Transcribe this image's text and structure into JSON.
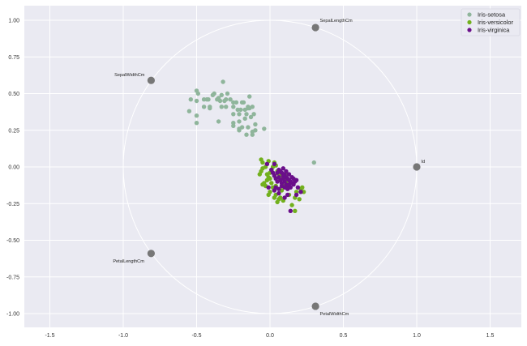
{
  "chart_data": {
    "type": "scatter",
    "title": "",
    "xlabel": "",
    "ylabel": "",
    "xlim": [
      -1.65,
      1.72
    ],
    "ylim": [
      -1.1,
      1.1
    ],
    "grid": true,
    "legend_position": "upper right",
    "x_ticks": [
      "-1.5",
      "-1.0",
      "-0.5",
      "0.0",
      "0.5",
      "1.0",
      "1.5"
    ],
    "x_tick_values": [
      -1.5,
      -1.0,
      -0.5,
      0.0,
      0.5,
      1.0,
      1.5
    ],
    "y_ticks": [
      "1.00",
      "0.75",
      "0.50",
      "0.25",
      "0.00",
      "-0.25",
      "-0.50",
      "-0.75",
      "-1.00"
    ],
    "y_tick_values": [
      1.0,
      0.75,
      0.5,
      0.25,
      0.0,
      -0.25,
      -0.5,
      -0.75,
      -1.0
    ],
    "unit_circle": {
      "center": [
        0,
        0
      ],
      "radius": 1.0,
      "color": "#ffffff"
    },
    "series": [
      {
        "name": "Iris-setosa",
        "color": "#8fb59b",
        "points": [
          [
            -0.32,
            0.58
          ],
          [
            -0.5,
            0.52
          ],
          [
            -0.49,
            0.5
          ],
          [
            -0.54,
            0.46
          ],
          [
            -0.5,
            0.45
          ],
          [
            -0.45,
            0.46
          ],
          [
            -0.43,
            0.46
          ],
          [
            -0.42,
            0.46
          ],
          [
            -0.39,
            0.49
          ],
          [
            -0.38,
            0.5
          ],
          [
            -0.36,
            0.46
          ],
          [
            -0.35,
            0.47
          ],
          [
            -0.34,
            0.45
          ],
          [
            -0.33,
            0.49
          ],
          [
            -0.3,
            0.46
          ],
          [
            -0.31,
            0.45
          ],
          [
            -0.29,
            0.5
          ],
          [
            -0.27,
            0.46
          ],
          [
            -0.25,
            0.44
          ],
          [
            -0.23,
            0.44
          ],
          [
            -0.19,
            0.44
          ],
          [
            -0.14,
            0.48
          ],
          [
            -0.18,
            0.44
          ],
          [
            -0.22,
            0.39
          ],
          [
            -0.2,
            0.39
          ],
          [
            -0.17,
            0.39
          ],
          [
            -0.15,
            0.4
          ],
          [
            -0.15,
            0.41
          ],
          [
            -0.14,
            0.4
          ],
          [
            -0.12,
            0.41
          ],
          [
            -0.21,
            0.36
          ],
          [
            -0.16,
            0.36
          ],
          [
            -0.11,
            0.36
          ],
          [
            -0.13,
            0.34
          ],
          [
            -0.17,
            0.33
          ],
          [
            -0.25,
            0.36
          ],
          [
            -0.25,
            0.41
          ],
          [
            -0.3,
            0.41
          ],
          [
            -0.33,
            0.41
          ],
          [
            -0.41,
            0.4
          ],
          [
            -0.41,
            0.41
          ],
          [
            -0.45,
            0.41
          ],
          [
            -0.55,
            0.38
          ],
          [
            -0.5,
            0.35
          ],
          [
            -0.5,
            0.3
          ],
          [
            -0.35,
            0.31
          ],
          [
            -0.25,
            0.3
          ],
          [
            -0.25,
            0.28
          ],
          [
            -0.21,
            0.31
          ],
          [
            -0.19,
            0.27
          ],
          [
            -0.21,
            0.26
          ],
          [
            -0.21,
            0.25
          ],
          [
            -0.15,
            0.27
          ],
          [
            -0.1,
            0.29
          ],
          [
            -0.04,
            0.26
          ],
          [
            -0.1,
            0.25
          ],
          [
            -0.16,
            0.22
          ],
          [
            -0.12,
            0.22
          ],
          [
            -0.12,
            0.24
          ],
          [
            0.3,
            0.03
          ]
        ]
      },
      {
        "name": "Iris-versicolor",
        "color": "#72b01d",
        "points": [
          [
            -0.06,
            0.05
          ],
          [
            -0.05,
            0.03
          ],
          [
            -0.06,
            -0.03
          ],
          [
            -0.07,
            -0.05
          ],
          [
            -0.05,
            -0.01
          ],
          [
            -0.03,
            0.0
          ],
          [
            -0.02,
            0.02
          ],
          [
            -0.01,
            0.04
          ],
          [
            0.01,
            -0.02
          ],
          [
            0.02,
            0.0
          ],
          [
            0.03,
            0.03
          ],
          [
            0.04,
            0.01
          ],
          [
            -0.04,
            -0.11
          ],
          [
            -0.05,
            -0.12
          ],
          [
            -0.03,
            -0.13
          ],
          [
            -0.02,
            -0.09
          ],
          [
            -0.01,
            -0.07
          ],
          [
            0.0,
            -0.04
          ],
          [
            -0.02,
            -0.05
          ],
          [
            0.0,
            -0.08
          ],
          [
            0.01,
            -0.11
          ],
          [
            0.03,
            -0.06
          ],
          [
            0.05,
            -0.03
          ],
          [
            0.06,
            -0.05
          ],
          [
            0.07,
            -0.07
          ],
          [
            0.08,
            -0.06
          ],
          [
            0.1,
            -0.08
          ],
          [
            0.11,
            -0.1
          ],
          [
            0.12,
            -0.05
          ],
          [
            0.04,
            -0.13
          ],
          [
            0.02,
            -0.14
          ],
          [
            0.08,
            -0.16
          ],
          [
            0.09,
            -0.13
          ],
          [
            0.13,
            -0.19
          ],
          [
            0.17,
            -0.21
          ],
          [
            0.22,
            -0.14
          ],
          [
            0.23,
            -0.17
          ],
          [
            0.0,
            -0.17
          ],
          [
            -0.01,
            -0.19
          ],
          [
            0.04,
            -0.19
          ],
          [
            0.07,
            -0.21
          ],
          [
            0.06,
            -0.22
          ],
          [
            0.17,
            -0.3
          ],
          [
            0.15,
            -0.26
          ],
          [
            0.2,
            -0.22
          ],
          [
            0.05,
            -0.24
          ],
          [
            0.09,
            -0.23
          ],
          [
            0.03,
            -0.21
          ],
          [
            0.21,
            -0.15
          ],
          [
            0.18,
            -0.17
          ]
        ]
      },
      {
        "name": "Iris-virginica",
        "color": "#6a0f8a",
        "points": [
          [
            -0.02,
            0.02
          ],
          [
            0.03,
            0.02
          ],
          [
            0.05,
            -0.04
          ],
          [
            0.06,
            -0.02
          ],
          [
            0.07,
            -0.03
          ],
          [
            0.08,
            -0.04
          ],
          [
            0.09,
            -0.06
          ],
          [
            0.1,
            -0.05
          ],
          [
            0.11,
            -0.07
          ],
          [
            0.12,
            -0.08
          ],
          [
            0.13,
            -0.09
          ],
          [
            0.14,
            -0.1
          ],
          [
            0.15,
            -0.11
          ],
          [
            0.16,
            -0.12
          ],
          [
            0.17,
            -0.1
          ],
          [
            0.18,
            -0.09
          ],
          [
            0.1,
            -0.1
          ],
          [
            0.11,
            -0.12
          ],
          [
            0.12,
            -0.13
          ],
          [
            0.13,
            -0.12
          ],
          [
            0.14,
            -0.14
          ],
          [
            0.09,
            -0.08
          ],
          [
            0.08,
            -0.11
          ],
          [
            0.07,
            -0.09
          ],
          [
            0.06,
            -0.07
          ],
          [
            0.05,
            -0.1
          ],
          [
            0.04,
            -0.08
          ],
          [
            0.03,
            -0.06
          ],
          [
            0.02,
            -0.04
          ],
          [
            0.01,
            -0.02
          ],
          [
            0.11,
            -0.03
          ],
          [
            0.09,
            -0.01
          ],
          [
            0.13,
            -0.05
          ],
          [
            0.15,
            -0.07
          ],
          [
            0.16,
            -0.08
          ],
          [
            0.1,
            -0.14
          ],
          [
            0.12,
            -0.15
          ],
          [
            0.08,
            -0.13
          ],
          [
            0.06,
            -0.15
          ],
          [
            0.04,
            -0.14
          ],
          [
            0.03,
            -0.16
          ],
          [
            0.19,
            -0.14
          ],
          [
            0.21,
            -0.17
          ],
          [
            0.18,
            -0.19
          ],
          [
            0.12,
            -0.19
          ],
          [
            0.06,
            -0.18
          ],
          [
            0.1,
            -0.21
          ],
          [
            -0.01,
            -0.14
          ],
          [
            0.14,
            -0.3
          ],
          [
            0.08,
            -0.11
          ]
        ]
      }
    ],
    "feature_vectors": [
      {
        "name": "SepalLengthCm",
        "x": 0.31,
        "y": 0.95,
        "label_dx": 0.03,
        "label_dy": 0.05
      },
      {
        "name": "SepalWidthCm",
        "x": -0.81,
        "y": 0.59,
        "label_dx": -0.25,
        "label_dy": 0.04
      },
      {
        "name": "Id",
        "x": 1.0,
        "y": 0.0,
        "label_dx": 0.03,
        "label_dy": 0.04
      },
      {
        "name": "PetalLengthCm",
        "x": -0.81,
        "y": -0.59,
        "label_dx": -0.26,
        "label_dy": -0.05
      },
      {
        "name": "PetalWidthCm",
        "x": 0.31,
        "y": -0.95,
        "label_dx": 0.03,
        "label_dy": -0.05
      }
    ],
    "feature_color": "#777777"
  },
  "legend": {
    "items": [
      {
        "label": "Iris-setosa",
        "color": "#8fb59b"
      },
      {
        "label": "Iris-versicolor",
        "color": "#72b01d"
      },
      {
        "label": "Iris-virginica",
        "color": "#6a0f8a"
      }
    ]
  },
  "style": {
    "plot_background": "#eaeaf2",
    "grid_color": "#ffffff"
  }
}
